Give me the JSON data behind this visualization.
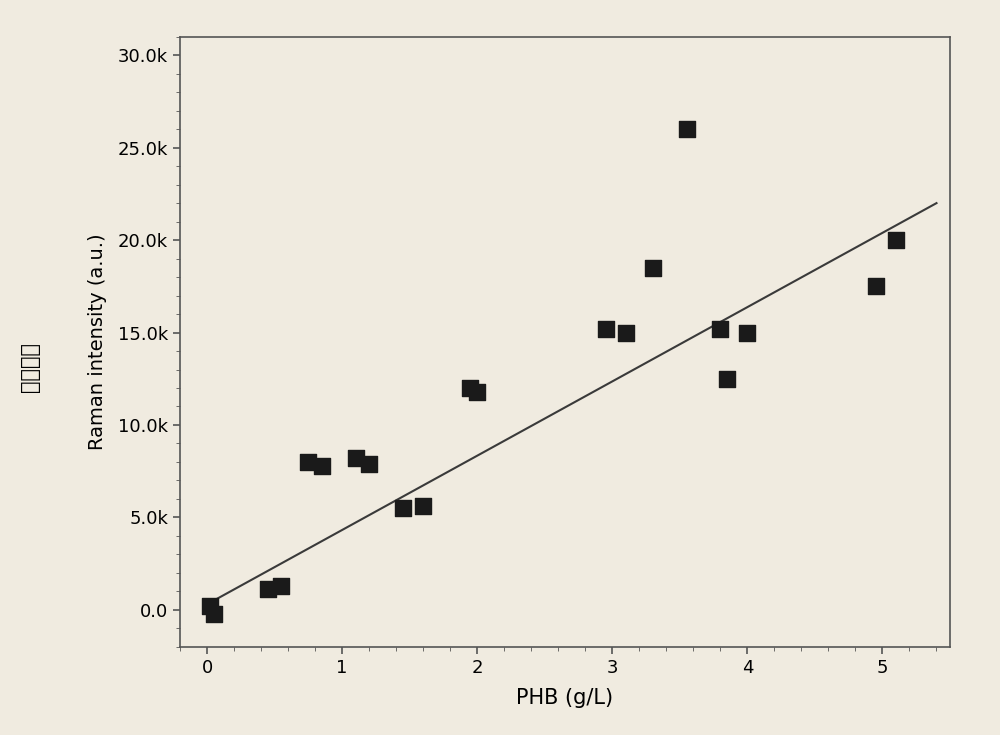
{
  "scatter_x": [
    0.02,
    0.05,
    0.45,
    0.55,
    0.75,
    0.85,
    1.1,
    1.2,
    1.45,
    1.6,
    1.95,
    2.0,
    2.95,
    3.1,
    3.3,
    3.55,
    3.8,
    3.85,
    4.0,
    4.95,
    5.1
  ],
  "scatter_y": [
    200,
    -200,
    1100,
    1300,
    8000,
    7800,
    8200,
    7900,
    5500,
    5600,
    12000,
    11800,
    15200,
    15000,
    18500,
    26000,
    15200,
    12500,
    15000,
    17500,
    20000
  ],
  "line_x": [
    0.0,
    5.4
  ],
  "line_y": [
    300,
    22000
  ],
  "xlabel": "PHB (g/L)",
  "ylabel_en": "Raman intensity (a.u.)",
  "ylabel_cn": "拉曼强度",
  "xlim": [
    -0.2,
    5.5
  ],
  "ylim": [
    -2000,
    31000
  ],
  "xticks": [
    0,
    1,
    2,
    3,
    4,
    5
  ],
  "yticks": [
    0,
    5000,
    10000,
    15000,
    20000,
    25000,
    30000
  ],
  "ytick_labels": [
    "0.0",
    "5.0k",
    "10.0k",
    "15.0k",
    "20.0k",
    "25.0k",
    "30.0k"
  ],
  "marker_color": "#1a1a1a",
  "line_color": "#3a3a3a",
  "bg_color": "#f0ebe0",
  "label_fontsize": 15,
  "tick_fontsize": 13,
  "marker_size": 11
}
